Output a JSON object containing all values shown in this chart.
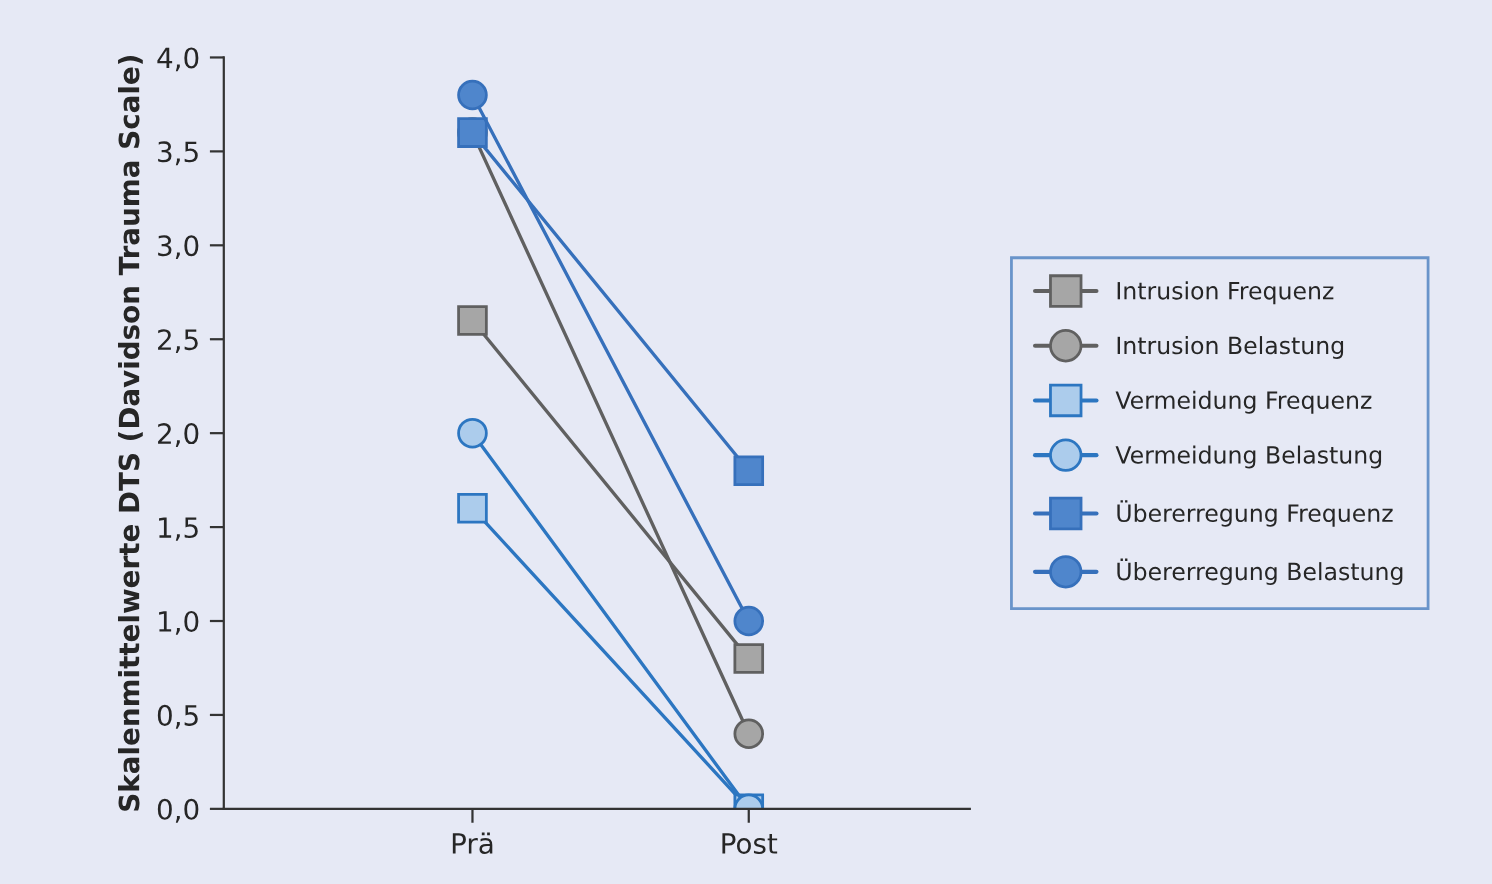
{
  "chart_data": {
    "type": "line",
    "ylabel": "Skalenmittelwerte DTS (Davidson Trauma Scale)",
    "categories": [
      "Prä",
      "Post"
    ],
    "ylim": [
      0,
      4
    ],
    "yticks": [
      {
        "value": 0,
        "label": "0,0"
      },
      {
        "value": 0.5,
        "label": "0,5"
      },
      {
        "value": 1,
        "label": "1,0"
      },
      {
        "value": 1.5,
        "label": "1,5"
      },
      {
        "value": 2,
        "label": "2,0"
      },
      {
        "value": 2.5,
        "label": "2,5"
      },
      {
        "value": 3,
        "label": "3,0"
      },
      {
        "value": 3.5,
        "label": "3,5"
      },
      {
        "value": 4,
        "label": "4,0"
      }
    ],
    "grid": false,
    "legend": "right",
    "series": [
      {
        "name": "Intrusion Frequenz",
        "color": "#a6a6a6",
        "marker": "square",
        "values": [
          2.6,
          0.8
        ]
      },
      {
        "name": "Intrusion Belastung",
        "color": "#a6a6a6",
        "marker": "circle",
        "values": [
          3.6,
          0.4
        ]
      },
      {
        "name": "Vermeidung Frequenz",
        "color": "#acccec",
        "marker": "square",
        "values": [
          1.6,
          0.0
        ]
      },
      {
        "name": "Vermeidung Belastung",
        "color": "#acccec",
        "marker": "circle",
        "values": [
          2.0,
          0.0
        ]
      },
      {
        "name": "Übererregung Frequenz",
        "color": "#4f86cc",
        "marker": "square",
        "values": [
          3.6,
          1.8
        ]
      },
      {
        "name": "Übererregung Belastung",
        "color": "#4f86cc",
        "marker": "circle",
        "values": [
          3.8,
          1.0
        ]
      }
    ]
  }
}
